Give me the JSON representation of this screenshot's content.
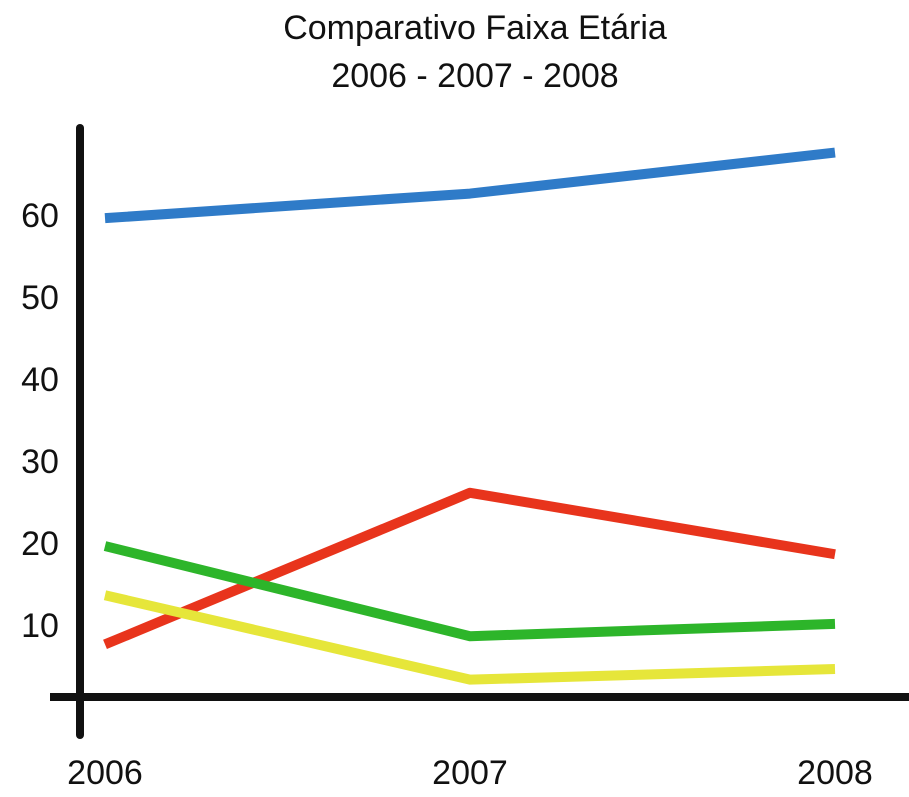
{
  "chart_data": {
    "type": "line",
    "title": "Comparativo Faixa Etária",
    "subtitle": "2006 - 2007 - 2008",
    "categories": [
      "2006",
      "2007",
      "2008"
    ],
    "series": [
      {
        "color": "#2f7bc8",
        "values": [
          60,
          63,
          68
        ]
      },
      {
        "color": "#e8341c",
        "values": [
          8,
          26.5,
          19
        ]
      },
      {
        "color": "#2db52a",
        "values": [
          20,
          9,
          10.5
        ]
      },
      {
        "color": "#e6e63a",
        "values": [
          14,
          3.7,
          5
        ]
      }
    ],
    "ylim": [
      0,
      71
    ],
    "yticks": [
      10,
      20,
      30,
      40,
      50,
      60
    ],
    "grid": false
  }
}
